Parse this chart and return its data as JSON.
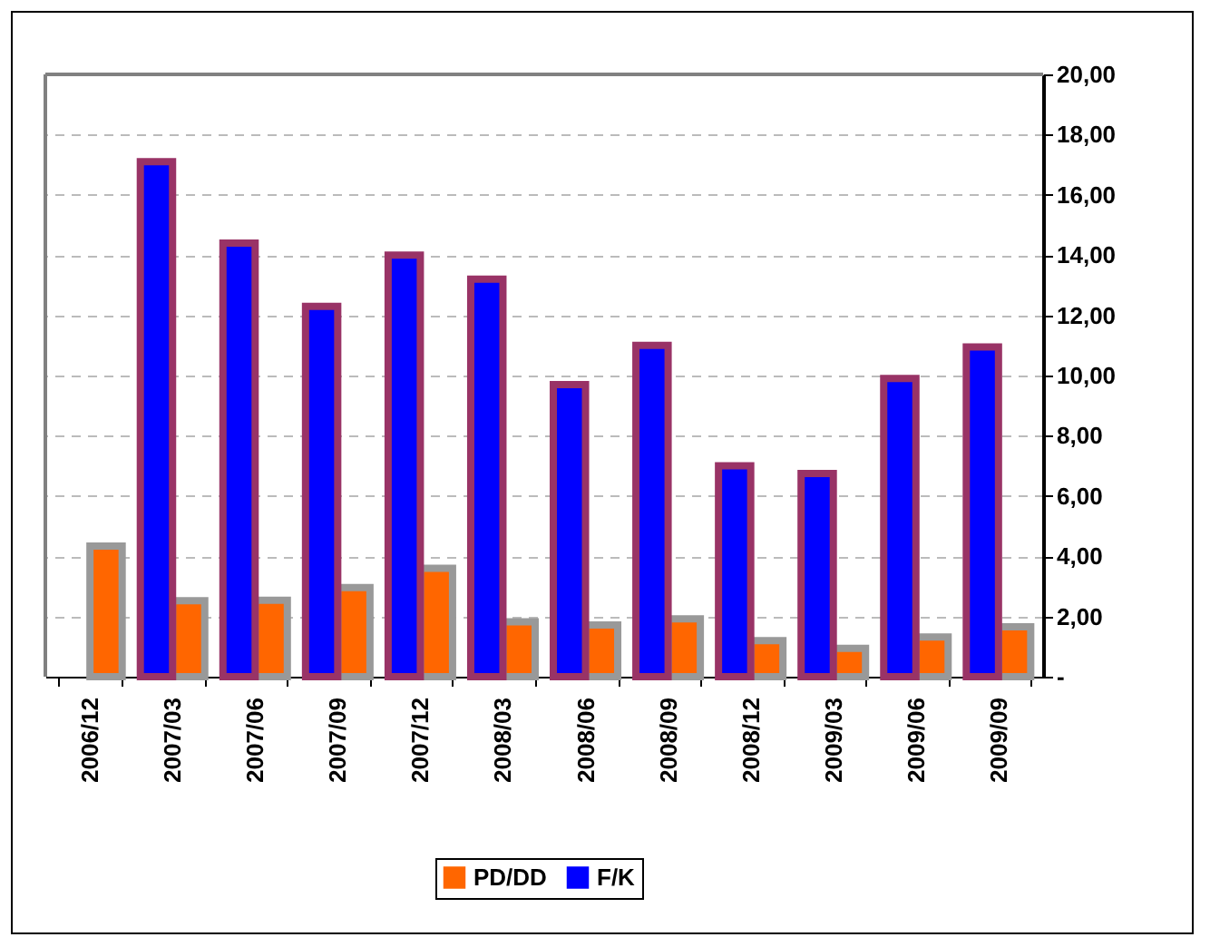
{
  "chart_data": {
    "type": "bar",
    "categories": [
      "2006/12",
      "2007/03",
      "2007/06",
      "2007/09",
      "2007/12",
      "2008/03",
      "2008/06",
      "2008/09",
      "2008/12",
      "2009/03",
      "2009/06",
      "2009/09"
    ],
    "series": [
      {
        "name": "PD/DD",
        "color": "#ff6600",
        "values": [
          4.34,
          2.52,
          2.54,
          2.96,
          3.6,
          1.82,
          1.72,
          1.92,
          1.2,
          0.94,
          1.32,
          1.66
        ]
      },
      {
        "name": "F/K",
        "color": "#0000ff",
        "values": [
          null,
          17.1,
          14.4,
          12.3,
          14.0,
          13.2,
          9.7,
          11.0,
          7.0,
          6.75,
          9.9,
          10.95
        ]
      }
    ],
    "ylim": [
      0,
      20
    ],
    "yticks": [
      {
        "value": 0,
        "label": "-"
      },
      {
        "value": 2,
        "label": "2,00"
      },
      {
        "value": 4,
        "label": "4,00"
      },
      {
        "value": 6,
        "label": "6,00"
      },
      {
        "value": 8,
        "label": "8,00"
      },
      {
        "value": 10,
        "label": "10,00"
      },
      {
        "value": 12,
        "label": "12,00"
      },
      {
        "value": 14,
        "label": "14,00"
      },
      {
        "value": 16,
        "label": "16,00"
      },
      {
        "value": 18,
        "label": "18,00"
      },
      {
        "value": 20,
        "label": "20,00"
      }
    ],
    "grid": "y",
    "legend": "bottom"
  }
}
